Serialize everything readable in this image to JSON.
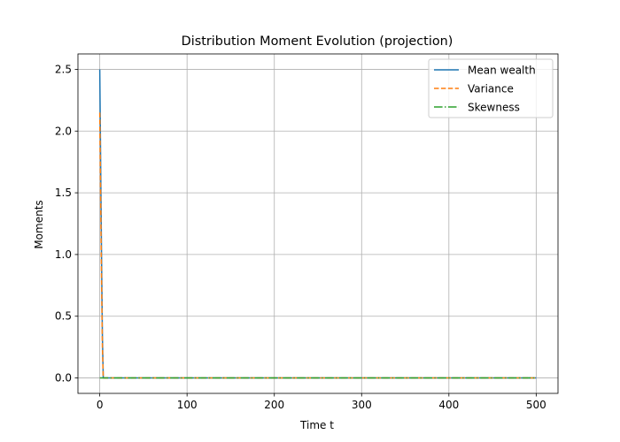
{
  "chart_data": {
    "type": "line",
    "title": "Distribution Moment Evolution (projection)",
    "xlabel": "Time t",
    "ylabel": "Moments",
    "xlim": [
      -25,
      525
    ],
    "ylim": [
      -0.125,
      2.625
    ],
    "x_ticks": [
      0,
      100,
      200,
      300,
      400,
      500
    ],
    "y_ticks": [
      0.0,
      0.5,
      1.0,
      1.5,
      2.0,
      2.5
    ],
    "x_tick_labels": [
      "0",
      "100",
      "200",
      "300",
      "400",
      "500"
    ],
    "y_tick_labels": [
      "0.0",
      "0.5",
      "1.0",
      "1.5",
      "2.0",
      "2.5"
    ],
    "grid": true,
    "legend_position": "top-right",
    "series": [
      {
        "name": "Mean wealth",
        "color": "#1f77b4",
        "style": "solid",
        "x": [
          0,
          1,
          2,
          3,
          4,
          5,
          10,
          50,
          100,
          200,
          300,
          400,
          500
        ],
        "y": [
          2.5,
          1.75,
          1.0,
          0.35,
          0.0,
          0.0,
          0.0,
          0.0,
          0.0,
          0.0,
          0.0,
          0.0,
          0.0
        ]
      },
      {
        "name": "Variance",
        "color": "#ff7f0e",
        "style": "dashed",
        "x": [
          0,
          1,
          2,
          3,
          4,
          5,
          10,
          50,
          100,
          200,
          300,
          400,
          500
        ],
        "y": [
          2.15,
          1.45,
          0.8,
          0.25,
          0.0,
          0.0,
          0.0,
          0.0,
          0.0,
          0.0,
          0.0,
          0.0,
          0.0
        ]
      },
      {
        "name": "Skewness",
        "color": "#2ca02c",
        "style": "dashdot",
        "x": [
          0,
          100,
          200,
          300,
          400,
          500
        ],
        "y": [
          0.0,
          0.0,
          0.0,
          0.0,
          0.0,
          0.0
        ]
      }
    ]
  }
}
